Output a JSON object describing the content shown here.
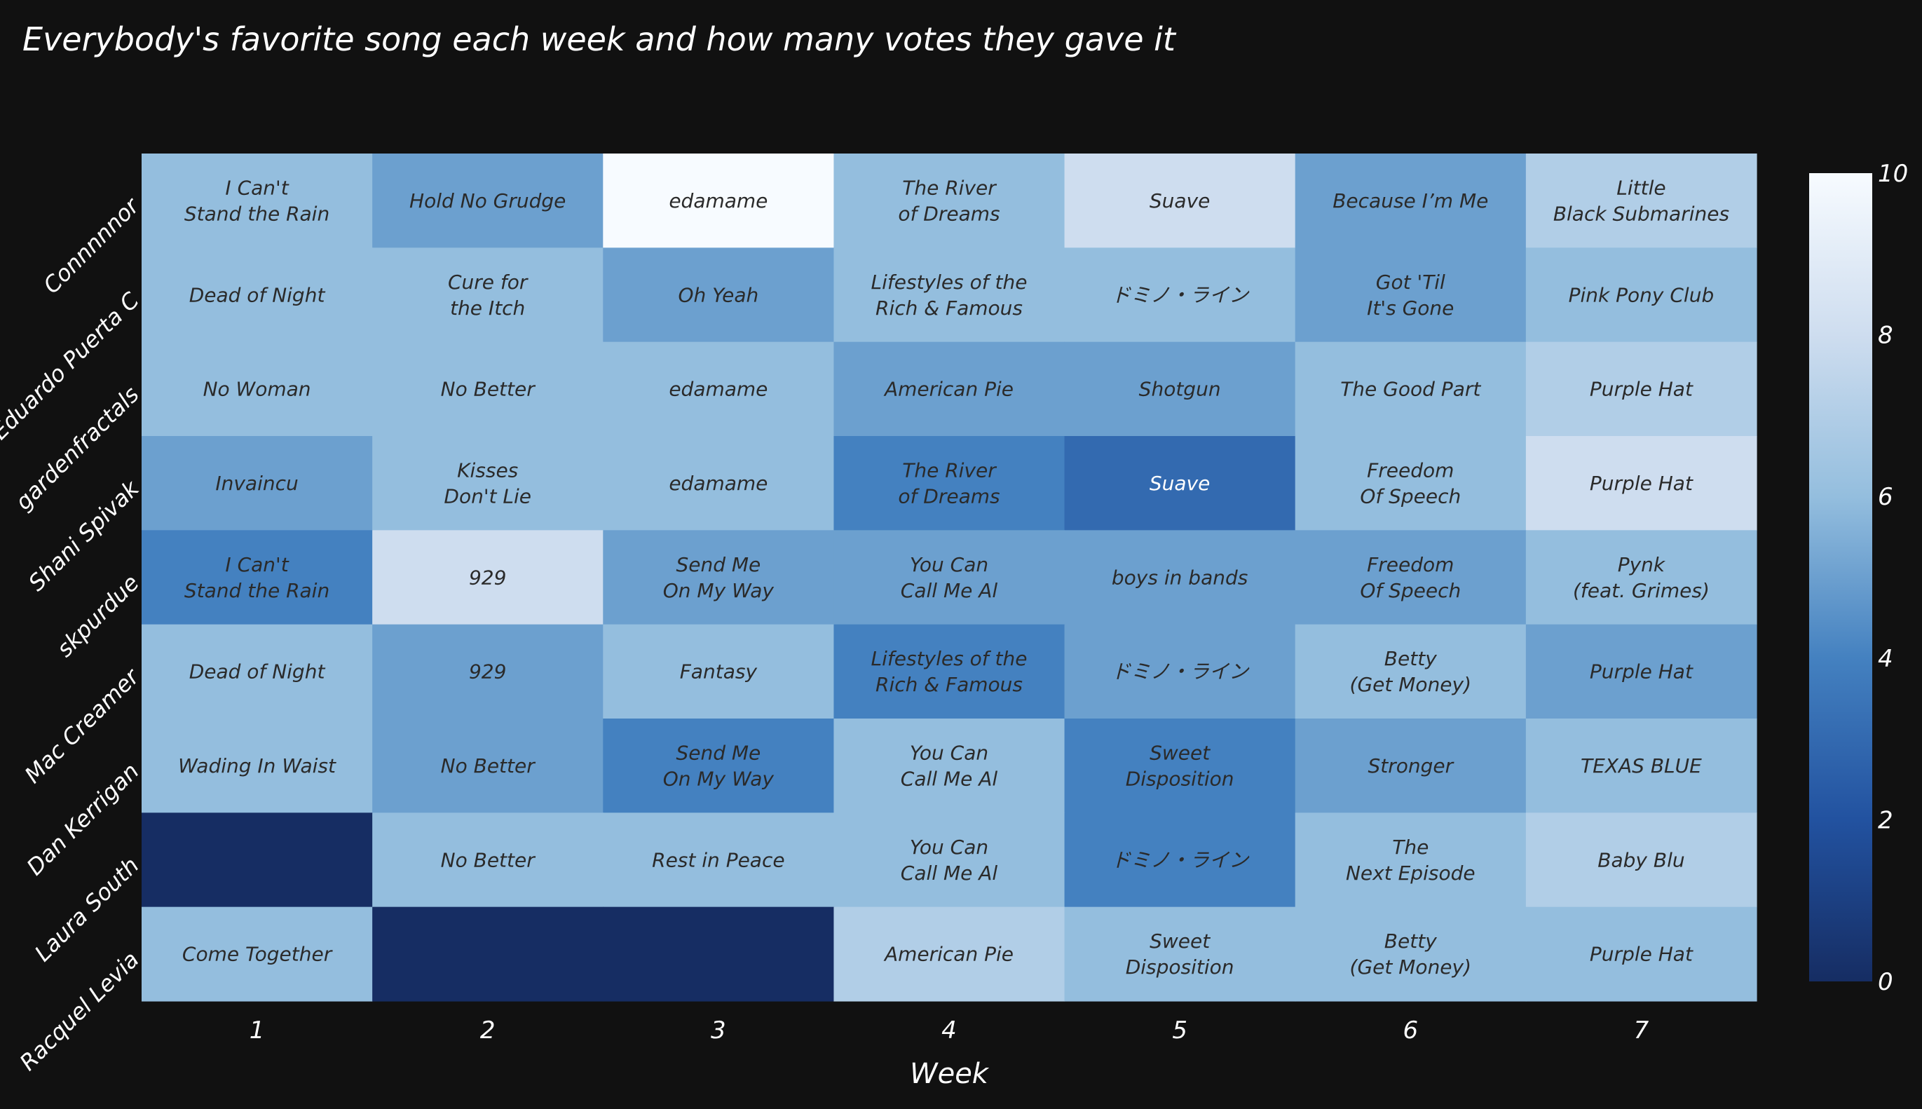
{
  "chart_data": {
    "type": "heatmap",
    "title": "Everybody's favorite song each week and how many votes they gave it",
    "xlabel": "Week",
    "ylabel": "",
    "x_categories": [
      "1",
      "2",
      "3",
      "4",
      "5",
      "6",
      "7"
    ],
    "y_categories": [
      "Connnnnor",
      "Eduardo Puerta C",
      "gardenfractals",
      "Shani Spivak",
      "skpurdue",
      "Mac Creamer",
      "Dan Kerrigan",
      "Laura South",
      "Racquel Levia"
    ],
    "zlim": [
      0,
      10
    ],
    "colorbar_ticks": [
      0,
      2,
      4,
      6,
      8,
      10
    ],
    "colorscale": "Blues",
    "values": [
      [
        6,
        5,
        10,
        6,
        8,
        5,
        7
      ],
      [
        6,
        6,
        5,
        6,
        6,
        5,
        6
      ],
      [
        6,
        6,
        6,
        5,
        5,
        6,
        7
      ],
      [
        5,
        6,
        6,
        4,
        3,
        6,
        8
      ],
      [
        4,
        8,
        5,
        5,
        5,
        5,
        6
      ],
      [
        6,
        5,
        6,
        4,
        5,
        6,
        5
      ],
      [
        6,
        5,
        4,
        6,
        4,
        5,
        6
      ],
      [
        0,
        6,
        6,
        6,
        4,
        6,
        7
      ],
      [
        6,
        0,
        0,
        7,
        6,
        6,
        6
      ]
    ],
    "cell_text": [
      [
        "I Can't\nStand the Rain",
        "Hold No Grudge",
        "edamame",
        "The River\nof Dreams",
        "Suave",
        "Because I’m Me",
        "Little\nBlack Submarines"
      ],
      [
        "Dead of Night",
        "Cure for\nthe Itch",
        "Oh Yeah",
        "Lifestyles of the\nRich & Famous",
        "ドミノ・ライン",
        "Got 'Til\nIt's Gone",
        "Pink Pony Club"
      ],
      [
        "No Woman",
        "No Better",
        "edamame",
        "American Pie",
        "Shotgun",
        "The Good Part",
        "Purple Hat"
      ],
      [
        "Invaincu",
        "Kisses\nDon't Lie",
        "edamame",
        "The River\nof Dreams",
        "Suave",
        "Freedom\nOf Speech",
        "Purple Hat"
      ],
      [
        "I Can't\nStand the Rain",
        "929",
        "Send Me\nOn My Way",
        "You Can\nCall Me Al",
        "boys in bands",
        "Freedom\nOf Speech",
        "Pynk\n(feat. Grimes)"
      ],
      [
        "Dead of Night",
        "929",
        "Fantasy",
        "Lifestyles of the\nRich & Famous",
        "ドミノ・ライン",
        "Betty\n(Get Money)",
        "Purple Hat"
      ],
      [
        "Wading In Waist",
        "No Better",
        "Send Me\nOn My Way",
        "You Can\nCall Me Al",
        "Sweet\nDisposition",
        "Stronger",
        "TEXAS BLUE"
      ],
      [
        "",
        "No Better",
        "Rest in Peace",
        "You Can\nCall Me Al",
        "ドミノ・ライン",
        "The\nNext Episode",
        "Baby Blu"
      ],
      [
        "Come Together",
        "",
        "",
        "American Pie",
        "Sweet\nDisposition",
        "Betty\n(Get Money)",
        "Purple Hat"
      ]
    ]
  }
}
